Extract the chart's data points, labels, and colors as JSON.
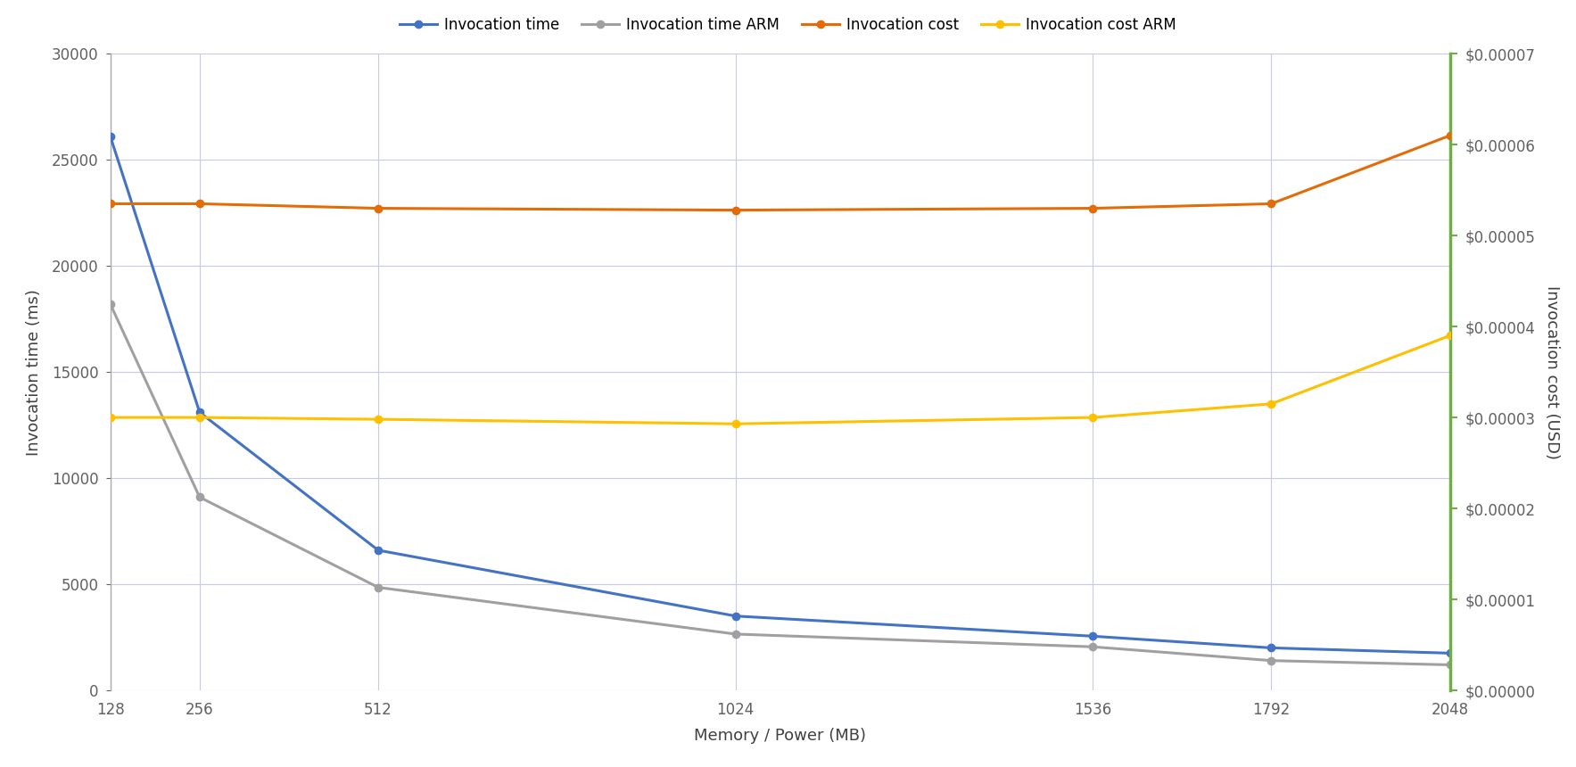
{
  "x_labels": [
    "128",
    "256",
    "512",
    "1024",
    "1536",
    "1792",
    "2048"
  ],
  "x_values": [
    128,
    256,
    512,
    1024,
    1536,
    1792,
    2048
  ],
  "invocation_time": [
    26100,
    13100,
    6600,
    3500,
    2550,
    2000,
    1750
  ],
  "invocation_time_arm": [
    18200,
    9100,
    4850,
    2650,
    2050,
    1400,
    1200
  ],
  "invocation_cost": [
    5.35e-05,
    5.35e-05,
    5.3e-05,
    5.28e-05,
    5.3e-05,
    5.35e-05,
    6.1e-05
  ],
  "invocation_cost_arm": [
    3e-05,
    3e-05,
    2.98e-05,
    2.93e-05,
    3e-05,
    3.15e-05,
    3.9e-05
  ],
  "colors": {
    "invocation_time": "#4472C4",
    "invocation_time_arm": "#A0A0A0",
    "invocation_cost": "#E36C09",
    "invocation_cost_arm": "#FFC000"
  },
  "legend_labels": [
    "Invocation time",
    "Invocation time ARM",
    "Invocation cost",
    "Invocation cost ARM"
  ],
  "xlabel": "Memory / Power (MB)",
  "ylabel_left": "Invocation time (ms)",
  "ylabel_right": "Invocation cost (USD)",
  "ylim_left": [
    0,
    30000
  ],
  "ylim_right": [
    0,
    7e-05
  ],
  "background_color": "#FFFFFF",
  "grid_color": "#C8C8E8",
  "right_axis_color": "#70AD47",
  "left_spine_color": "#AAAAAA",
  "tick_label_color": "#606060",
  "axis_label_color": "#404040"
}
